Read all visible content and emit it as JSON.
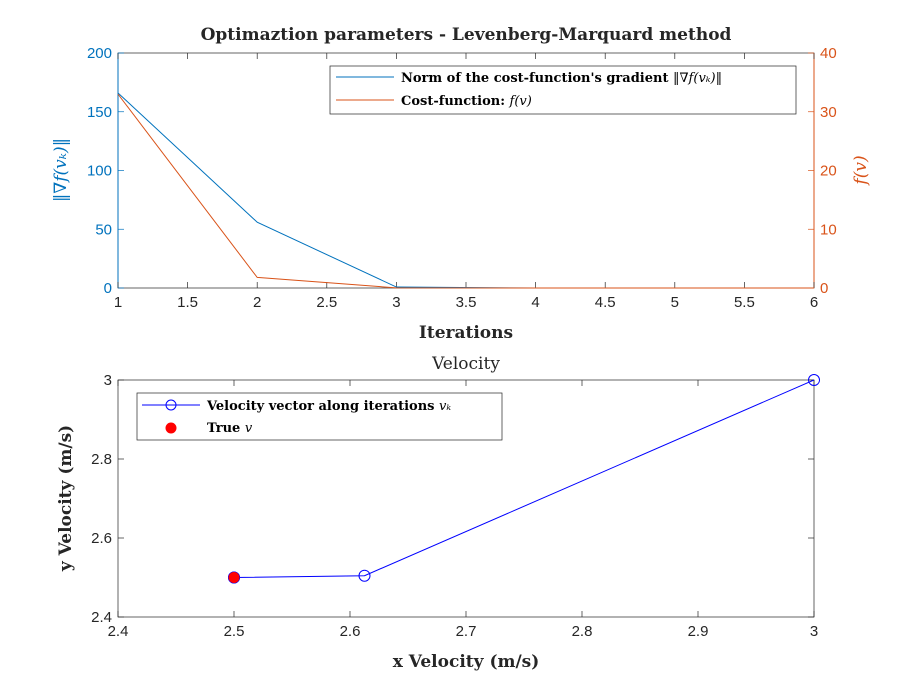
{
  "colors": {
    "gradient": "#0072BD",
    "cost": "#D95319",
    "velocity": "#0000FF",
    "true_point": "#FF0000",
    "axis": "#262626",
    "left_axis": "#0072BD",
    "right_axis": "#D95319"
  },
  "chart_data": [
    {
      "type": "line",
      "title": "Optimaztion parameters - Levenberg-Marquard method",
      "xlabel": "Iterations",
      "ylabel_left": "‖∇f(vₖ)‖",
      "ylabel_right": "f(v)",
      "xlim": [
        1,
        6
      ],
      "ylim_left": [
        0,
        200
      ],
      "ylim_right": [
        0,
        40
      ],
      "x_ticks": [
        1,
        1.5,
        2,
        2.5,
        3,
        3.5,
        4,
        4.5,
        5,
        5.5,
        6
      ],
      "x_tick_labels": [
        "1",
        "1.5",
        "2",
        "2.5",
        "3",
        "3.5",
        "4",
        "4.5",
        "5",
        "5.5",
        "6"
      ],
      "y_ticks_left": [
        0,
        50,
        100,
        150,
        200
      ],
      "y_tick_labels_left": [
        "0",
        "50",
        "100",
        "150",
        "200"
      ],
      "y_ticks_right": [
        0,
        10,
        20,
        30,
        40
      ],
      "y_tick_labels_right": [
        "0",
        "10",
        "20",
        "30",
        "40"
      ],
      "grid": false,
      "legend_position": "top-right",
      "series": [
        {
          "name": "Norm of the cost-function's gradient ‖∇f(vₖ)‖",
          "legend_text": "Norm of the cost-function's gradient",
          "legend_math": "‖∇f(vₖ)‖",
          "axis": "left",
          "x": [
            1,
            2,
            3,
            4,
            5,
            6
          ],
          "y": [
            166,
            56,
            0.8,
            0,
            0,
            0
          ]
        },
        {
          "name": "Cost-function: f(v)",
          "legend_text": "Cost-function:",
          "legend_math": "f(v)",
          "axis": "right",
          "x": [
            1,
            2,
            3,
            4,
            5,
            6
          ],
          "y": [
            33,
            1.8,
            0.02,
            0,
            0,
            0
          ]
        }
      ]
    },
    {
      "type": "line",
      "title": "Velocity",
      "xlabel": "x Velocity (m/s)",
      "ylabel": "y Velocity (m/s)",
      "xlim": [
        2.4,
        3
      ],
      "ylim": [
        2.4,
        3
      ],
      "x_ticks": [
        2.4,
        2.5,
        2.6,
        2.7,
        2.8,
        2.9,
        3
      ],
      "x_tick_labels": [
        "2.4",
        "2.5",
        "2.6",
        "2.7",
        "2.8",
        "2.9",
        "3"
      ],
      "y_ticks": [
        2.4,
        2.6,
        2.8,
        3
      ],
      "y_tick_labels": [
        "2.4",
        "2.6",
        "2.8",
        "3"
      ],
      "grid": false,
      "legend_position": "top-left",
      "series": [
        {
          "name": "Velocity vector along iterations vₖ",
          "legend_text": "Velocity vector along iterations",
          "legend_math": "vₖ",
          "marker": "open-circle",
          "x": [
            3,
            2.6125,
            2.5,
            2.5
          ],
          "y": [
            3,
            2.5045,
            2.5,
            2.5
          ]
        },
        {
          "name": "True v",
          "legend_text": "True",
          "legend_math": "v",
          "marker": "filled-circle",
          "x": [
            2.5
          ],
          "y": [
            2.5
          ]
        }
      ]
    }
  ]
}
